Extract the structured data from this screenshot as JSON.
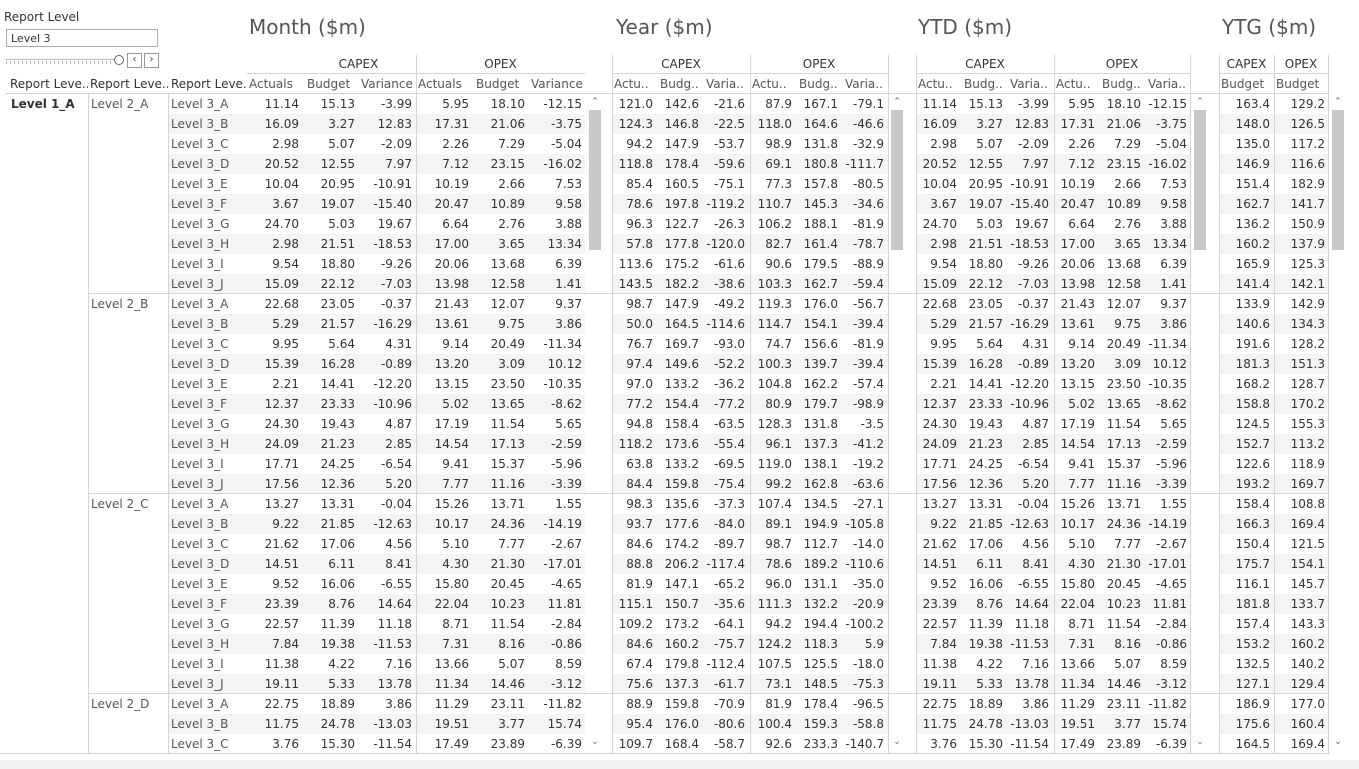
{
  "filter": {
    "title": "Report Level",
    "value": "Level 3"
  },
  "nav": {
    "prev_icon": "‹",
    "next_icon": "›"
  },
  "row_headers": [
    "Report Leve..",
    "Report Leve..",
    "Report Leve.."
  ],
  "level1": "Level 1_A",
  "level2": [
    "Level 2_A",
    "Level 2_B",
    "Level 2_C",
    "Level 2_D"
  ],
  "level3": [
    "Level 3_A",
    "Level 3_B",
    "Level 3_C",
    "Level 3_D",
    "Level 3_E",
    "Level 3_F",
    "Level 3_G",
    "Level 3_H",
    "Level 3_I",
    "Level 3_J"
  ],
  "panels": {
    "month": {
      "title": "Month ($m)",
      "groups": [
        "CAPEX",
        "OPEX"
      ],
      "columns": [
        "Actuals",
        "Budget",
        "Variance",
        "Actuals",
        "Budget",
        "Variance"
      ],
      "rows": [
        [
          "11.14",
          "15.13",
          "-3.99",
          "5.95",
          "18.10",
          "-12.15"
        ],
        [
          "16.09",
          "3.27",
          "12.83",
          "17.31",
          "21.06",
          "-3.75"
        ],
        [
          "2.98",
          "5.07",
          "-2.09",
          "2.26",
          "7.29",
          "-5.04"
        ],
        [
          "20.52",
          "12.55",
          "7.97",
          "7.12",
          "23.15",
          "-16.02"
        ],
        [
          "10.04",
          "20.95",
          "-10.91",
          "10.19",
          "2.66",
          "7.53"
        ],
        [
          "3.67",
          "19.07",
          "-15.40",
          "20.47",
          "10.89",
          "9.58"
        ],
        [
          "24.70",
          "5.03",
          "19.67",
          "6.64",
          "2.76",
          "3.88"
        ],
        [
          "2.98",
          "21.51",
          "-18.53",
          "17.00",
          "3.65",
          "13.34"
        ],
        [
          "9.54",
          "18.80",
          "-9.26",
          "20.06",
          "13.68",
          "6.39"
        ],
        [
          "15.09",
          "22.12",
          "-7.03",
          "13.98",
          "12.58",
          "1.41"
        ],
        [
          "22.68",
          "23.05",
          "-0.37",
          "21.43",
          "12.07",
          "9.37"
        ],
        [
          "5.29",
          "21.57",
          "-16.29",
          "13.61",
          "9.75",
          "3.86"
        ],
        [
          "9.95",
          "5.64",
          "4.31",
          "9.14",
          "20.49",
          "-11.34"
        ],
        [
          "15.39",
          "16.28",
          "-0.89",
          "13.20",
          "3.09",
          "10.12"
        ],
        [
          "2.21",
          "14.41",
          "-12.20",
          "13.15",
          "23.50",
          "-10.35"
        ],
        [
          "12.37",
          "23.33",
          "-10.96",
          "5.02",
          "13.65",
          "-8.62"
        ],
        [
          "24.30",
          "19.43",
          "4.87",
          "17.19",
          "11.54",
          "5.65"
        ],
        [
          "24.09",
          "21.23",
          "2.85",
          "14.54",
          "17.13",
          "-2.59"
        ],
        [
          "17.71",
          "24.25",
          "-6.54",
          "9.41",
          "15.37",
          "-5.96"
        ],
        [
          "17.56",
          "12.36",
          "5.20",
          "7.77",
          "11.16",
          "-3.39"
        ],
        [
          "13.27",
          "13.31",
          "-0.04",
          "15.26",
          "13.71",
          "1.55"
        ],
        [
          "9.22",
          "21.85",
          "-12.63",
          "10.17",
          "24.36",
          "-14.19"
        ],
        [
          "21.62",
          "17.06",
          "4.56",
          "5.10",
          "7.77",
          "-2.67"
        ],
        [
          "14.51",
          "6.11",
          "8.41",
          "4.30",
          "21.30",
          "-17.01"
        ],
        [
          "9.52",
          "16.06",
          "-6.55",
          "15.80",
          "20.45",
          "-4.65"
        ],
        [
          "23.39",
          "8.76",
          "14.64",
          "22.04",
          "10.23",
          "11.81"
        ],
        [
          "22.57",
          "11.39",
          "11.18",
          "8.71",
          "11.54",
          "-2.84"
        ],
        [
          "7.84",
          "19.38",
          "-11.53",
          "7.31",
          "8.16",
          "-0.86"
        ],
        [
          "11.38",
          "4.22",
          "7.16",
          "13.66",
          "5.07",
          "8.59"
        ],
        [
          "19.11",
          "5.33",
          "13.78",
          "11.34",
          "14.46",
          "-3.12"
        ],
        [
          "22.75",
          "18.89",
          "3.86",
          "11.29",
          "23.11",
          "-11.82"
        ],
        [
          "11.75",
          "24.78",
          "-13.03",
          "19.51",
          "3.77",
          "15.74"
        ],
        [
          "3.76",
          "15.30",
          "-11.54",
          "17.49",
          "23.89",
          "-6.39"
        ]
      ]
    },
    "year": {
      "title": "Year ($m)",
      "groups": [
        "CAPEX",
        "OPEX"
      ],
      "columns": [
        "Actu..",
        "Budg..",
        "Varia..",
        "Actu..",
        "Budg..",
        "Varia.."
      ],
      "rows": [
        [
          "121.0",
          "142.6",
          "-21.6",
          "87.9",
          "167.1",
          "-79.1"
        ],
        [
          "124.3",
          "146.8",
          "-22.5",
          "118.0",
          "164.6",
          "-46.6"
        ],
        [
          "94.2",
          "147.9",
          "-53.7",
          "98.9",
          "131.8",
          "-32.9"
        ],
        [
          "118.8",
          "178.4",
          "-59.6",
          "69.1",
          "180.8",
          "-111.7"
        ],
        [
          "85.4",
          "160.5",
          "-75.1",
          "77.3",
          "157.8",
          "-80.5"
        ],
        [
          "78.6",
          "197.8",
          "-119.2",
          "110.7",
          "145.3",
          "-34.6"
        ],
        [
          "96.3",
          "122.7",
          "-26.3",
          "106.2",
          "188.1",
          "-81.9"
        ],
        [
          "57.8",
          "177.8",
          "-120.0",
          "82.7",
          "161.4",
          "-78.7"
        ],
        [
          "113.6",
          "175.2",
          "-61.6",
          "90.6",
          "179.5",
          "-88.9"
        ],
        [
          "143.5",
          "182.2",
          "-38.6",
          "103.3",
          "162.7",
          "-59.4"
        ],
        [
          "98.7",
          "147.9",
          "-49.2",
          "119.3",
          "176.0",
          "-56.7"
        ],
        [
          "50.0",
          "164.5",
          "-114.6",
          "114.7",
          "154.1",
          "-39.4"
        ],
        [
          "76.7",
          "169.7",
          "-93.0",
          "74.7",
          "156.6",
          "-81.9"
        ],
        [
          "97.4",
          "149.6",
          "-52.2",
          "100.3",
          "139.7",
          "-39.4"
        ],
        [
          "97.0",
          "133.2",
          "-36.2",
          "104.8",
          "162.2",
          "-57.4"
        ],
        [
          "77.2",
          "154.4",
          "-77.2",
          "80.9",
          "179.7",
          "-98.9"
        ],
        [
          "94.8",
          "158.4",
          "-63.5",
          "128.3",
          "131.8",
          "-3.5"
        ],
        [
          "118.2",
          "173.6",
          "-55.4",
          "96.1",
          "137.3",
          "-41.2"
        ],
        [
          "63.8",
          "133.2",
          "-69.5",
          "119.0",
          "138.1",
          "-19.2"
        ],
        [
          "84.4",
          "159.8",
          "-75.4",
          "99.2",
          "162.8",
          "-63.6"
        ],
        [
          "98.3",
          "135.6",
          "-37.3",
          "107.4",
          "134.5",
          "-27.1"
        ],
        [
          "93.7",
          "177.6",
          "-84.0",
          "89.1",
          "194.9",
          "-105.8"
        ],
        [
          "84.6",
          "174.2",
          "-89.7",
          "98.7",
          "112.7",
          "-14.0"
        ],
        [
          "88.8",
          "206.2",
          "-117.4",
          "78.6",
          "189.2",
          "-110.6"
        ],
        [
          "81.9",
          "147.1",
          "-65.2",
          "96.0",
          "131.1",
          "-35.0"
        ],
        [
          "115.1",
          "150.7",
          "-35.6",
          "111.3",
          "132.2",
          "-20.9"
        ],
        [
          "109.2",
          "173.2",
          "-64.1",
          "94.2",
          "194.4",
          "-100.2"
        ],
        [
          "84.6",
          "160.2",
          "-75.7",
          "124.2",
          "118.3",
          "5.9"
        ],
        [
          "67.4",
          "179.8",
          "-112.4",
          "107.5",
          "125.5",
          "-18.0"
        ],
        [
          "75.6",
          "137.3",
          "-61.7",
          "73.1",
          "148.5",
          "-75.3"
        ],
        [
          "88.9",
          "159.8",
          "-70.9",
          "81.9",
          "178.4",
          "-96.5"
        ],
        [
          "95.4",
          "176.0",
          "-80.6",
          "100.4",
          "159.3",
          "-58.8"
        ],
        [
          "109.7",
          "168.4",
          "-58.7",
          "92.6",
          "233.3",
          "-140.7"
        ]
      ]
    },
    "ytd": {
      "title": "YTD ($m)",
      "groups": [
        "CAPEX",
        "OPEX"
      ],
      "columns": [
        "Actu..",
        "Budg..",
        "Varia..",
        "Actu..",
        "Budg..",
        "Varia.."
      ],
      "rows": [
        [
          "11.14",
          "15.13",
          "-3.99",
          "5.95",
          "18.10",
          "-12.15"
        ],
        [
          "16.09",
          "3.27",
          "12.83",
          "17.31",
          "21.06",
          "-3.75"
        ],
        [
          "2.98",
          "5.07",
          "-2.09",
          "2.26",
          "7.29",
          "-5.04"
        ],
        [
          "20.52",
          "12.55",
          "7.97",
          "7.12",
          "23.15",
          "-16.02"
        ],
        [
          "10.04",
          "20.95",
          "-10.91",
          "10.19",
          "2.66",
          "7.53"
        ],
        [
          "3.67",
          "19.07",
          "-15.40",
          "20.47",
          "10.89",
          "9.58"
        ],
        [
          "24.70",
          "5.03",
          "19.67",
          "6.64",
          "2.76",
          "3.88"
        ],
        [
          "2.98",
          "21.51",
          "-18.53",
          "17.00",
          "3.65",
          "13.34"
        ],
        [
          "9.54",
          "18.80",
          "-9.26",
          "20.06",
          "13.68",
          "6.39"
        ],
        [
          "15.09",
          "22.12",
          "-7.03",
          "13.98",
          "12.58",
          "1.41"
        ],
        [
          "22.68",
          "23.05",
          "-0.37",
          "21.43",
          "12.07",
          "9.37"
        ],
        [
          "5.29",
          "21.57",
          "-16.29",
          "13.61",
          "9.75",
          "3.86"
        ],
        [
          "9.95",
          "5.64",
          "4.31",
          "9.14",
          "20.49",
          "-11.34"
        ],
        [
          "15.39",
          "16.28",
          "-0.89",
          "13.20",
          "3.09",
          "10.12"
        ],
        [
          "2.21",
          "14.41",
          "-12.20",
          "13.15",
          "23.50",
          "-10.35"
        ],
        [
          "12.37",
          "23.33",
          "-10.96",
          "5.02",
          "13.65",
          "-8.62"
        ],
        [
          "24.30",
          "19.43",
          "4.87",
          "17.19",
          "11.54",
          "5.65"
        ],
        [
          "24.09",
          "21.23",
          "2.85",
          "14.54",
          "17.13",
          "-2.59"
        ],
        [
          "17.71",
          "24.25",
          "-6.54",
          "9.41",
          "15.37",
          "-5.96"
        ],
        [
          "17.56",
          "12.36",
          "5.20",
          "7.77",
          "11.16",
          "-3.39"
        ],
        [
          "13.27",
          "13.31",
          "-0.04",
          "15.26",
          "13.71",
          "1.55"
        ],
        [
          "9.22",
          "21.85",
          "-12.63",
          "10.17",
          "24.36",
          "-14.19"
        ],
        [
          "21.62",
          "17.06",
          "4.56",
          "5.10",
          "7.77",
          "-2.67"
        ],
        [
          "14.51",
          "6.11",
          "8.41",
          "4.30",
          "21.30",
          "-17.01"
        ],
        [
          "9.52",
          "16.06",
          "-6.55",
          "15.80",
          "20.45",
          "-4.65"
        ],
        [
          "23.39",
          "8.76",
          "14.64",
          "22.04",
          "10.23",
          "11.81"
        ],
        [
          "22.57",
          "11.39",
          "11.18",
          "8.71",
          "11.54",
          "-2.84"
        ],
        [
          "7.84",
          "19.38",
          "-11.53",
          "7.31",
          "8.16",
          "-0.86"
        ],
        [
          "11.38",
          "4.22",
          "7.16",
          "13.66",
          "5.07",
          "8.59"
        ],
        [
          "19.11",
          "5.33",
          "13.78",
          "11.34",
          "14.46",
          "-3.12"
        ],
        [
          "22.75",
          "18.89",
          "3.86",
          "11.29",
          "23.11",
          "-11.82"
        ],
        [
          "11.75",
          "24.78",
          "-13.03",
          "19.51",
          "3.77",
          "15.74"
        ],
        [
          "3.76",
          "15.30",
          "-11.54",
          "17.49",
          "23.89",
          "-6.39"
        ]
      ]
    },
    "ytg": {
      "title": "YTG ($m)",
      "groups": [
        "CAPEX",
        "OPEX"
      ],
      "columns": [
        "Budget",
        "Budget"
      ],
      "rows": [
        [
          "163.4",
          "129.2"
        ],
        [
          "148.0",
          "126.5"
        ],
        [
          "135.0",
          "117.2"
        ],
        [
          "146.9",
          "116.6"
        ],
        [
          "151.4",
          "182.9"
        ],
        [
          "162.7",
          "141.7"
        ],
        [
          "136.2",
          "150.9"
        ],
        [
          "160.2",
          "137.9"
        ],
        [
          "165.9",
          "125.3"
        ],
        [
          "141.4",
          "142.1"
        ],
        [
          "133.9",
          "142.9"
        ],
        [
          "140.6",
          "134.3"
        ],
        [
          "191.6",
          "128.2"
        ],
        [
          "181.3",
          "151.3"
        ],
        [
          "168.2",
          "128.7"
        ],
        [
          "158.8",
          "170.2"
        ],
        [
          "124.5",
          "155.3"
        ],
        [
          "152.7",
          "113.2"
        ],
        [
          "122.6",
          "118.9"
        ],
        [
          "193.2",
          "169.7"
        ],
        [
          "158.4",
          "108.8"
        ],
        [
          "166.3",
          "169.4"
        ],
        [
          "150.4",
          "121.5"
        ],
        [
          "175.7",
          "154.1"
        ],
        [
          "116.1",
          "145.7"
        ],
        [
          "181.8",
          "133.7"
        ],
        [
          "157.4",
          "143.3"
        ],
        [
          "153.2",
          "160.2"
        ],
        [
          "132.5",
          "140.2"
        ],
        [
          "127.1",
          "129.4"
        ],
        [
          "186.9",
          "177.0"
        ],
        [
          "175.6",
          "160.4"
        ],
        [
          "164.5",
          "169.4"
        ]
      ]
    }
  },
  "scroll": {
    "up_icon": "⌃",
    "down_icon": "⌄"
  },
  "colors": {
    "band": "#f4f4f4",
    "grid": "#d4d4d4",
    "scroll_thumb": "#c8c8c8",
    "text": "#333333"
  }
}
